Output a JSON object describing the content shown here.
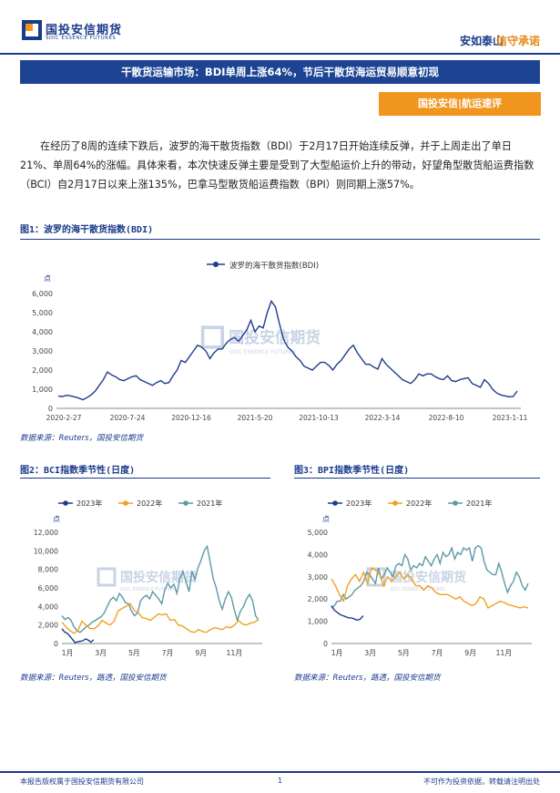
{
  "header": {
    "logo_cn": "国投安信期货",
    "logo_en": "SDIC ESSENCE FUTURES",
    "slogan_a": "安如泰山",
    "slogan_b": "信守承诺"
  },
  "title_bar": "干散货运输市场：BDI单周上涨64%，节后干散货海运贸易顺意初现",
  "section_tag": "国投安信|航运速评",
  "paragraph": "在经历了8周的连续下跌后，波罗的海干散货指数（BDI）于2月17日开始连续反弹，并于上周走出了单日21%、单周64%的涨幅。具体来看，本次快速反弹主要是受到了大型船运价上升的带动，好望角型散货船运费指数（BCI）自2月17日以来上涨135%，巴拿马型散货船运费指数（BPI）则同期上涨57%。",
  "watermark": {
    "cn": "国投安信期货",
    "en": "SDIC ESSENCE FUTURES"
  },
  "colors": {
    "navy": "#1a3a8a",
    "orange": "#f0961e",
    "bdi": "#1d3c8c",
    "s2023": "#1d3c8c",
    "s2022": "#f0a020",
    "s2021": "#5a9aa5"
  },
  "chart_data": [
    {
      "type": "line",
      "figure_title": "图1：波罗的海干散货指数(BDI)",
      "series_name": "波罗的海干散货指数(BDI)",
      "ylabel": "点",
      "ylim": [
        0,
        6000
      ],
      "yticks": [
        "0",
        "1,000",
        "2,000",
        "3,000",
        "4,000",
        "5,000",
        "6,000"
      ],
      "xticks": [
        "2020-2-27",
        "2020-7-24",
        "2020-12-16",
        "2021-5-20",
        "2021-10-13",
        "2022-3-14",
        "2022-8-10",
        "2023-1-11"
      ],
      "values": [
        640,
        620,
        680,
        650,
        600,
        540,
        450,
        560,
        700,
        900,
        1200,
        1500,
        1900,
        1750,
        1650,
        1500,
        1450,
        1550,
        1650,
        1700,
        1500,
        1400,
        1300,
        1200,
        1350,
        1450,
        1300,
        1350,
        1700,
        2000,
        2500,
        2400,
        2700,
        3000,
        3300,
        3200,
        3000,
        2600,
        2900,
        3100,
        3100,
        3400,
        3600,
        3700,
        3500,
        3800,
        4100,
        4600,
        4000,
        4300,
        4200,
        5000,
        5600,
        5300,
        4400,
        3600,
        3200,
        3000,
        2700,
        2500,
        2200,
        2100,
        2000,
        2200,
        2400,
        2400,
        2250,
        2000,
        2300,
        2500,
        2800,
        3100,
        3300,
        2900,
        2600,
        2300,
        2300,
        2150,
        2050,
        2600,
        2300,
        2100,
        1900,
        1700,
        1500,
        1400,
        1300,
        1500,
        1800,
        1700,
        1800,
        1800,
        1650,
        1550,
        1500,
        1700,
        1450,
        1400,
        1500,
        1550,
        1600,
        1300,
        1200,
        1100,
        1500,
        1300,
        1000,
        800,
        700,
        650,
        600,
        620,
        900
      ],
      "source": "数据来源：Reuters，国投安信期货"
    },
    {
      "type": "line",
      "figure_title": "图2：BCI指数季节性(日度)",
      "ylabel": "点",
      "ylim": [
        0,
        12000
      ],
      "yticks": [
        "0",
        "2,000",
        "4,000",
        "6,000",
        "8,000",
        "10,000",
        "12,000"
      ],
      "xticks": [
        "1月",
        "3月",
        "5月",
        "7月",
        "9月",
        "11月"
      ],
      "series": [
        {
          "name": "2023年",
          "values": [
            1600,
            1250,
            1100,
            800,
            450,
            100,
            200,
            250,
            300,
            500,
            350,
            150,
            400
          ]
        },
        {
          "name": "2022年",
          "values": [
            2300,
            1800,
            1400,
            1100,
            1400,
            2400,
            2000,
            1600,
            1600,
            1900,
            2500,
            2200,
            2000,
            2400,
            3500,
            3800,
            4000,
            4300,
            3600,
            3300,
            2800,
            2700,
            2500,
            2800,
            3200,
            3100,
            3200,
            2500,
            2600,
            2000,
            1900,
            1600,
            1300,
            1200,
            1500,
            1300,
            1200,
            1500,
            1700,
            1600,
            1500,
            1800,
            1700,
            2000,
            2500,
            2100,
            2000,
            2200,
            2300,
            2600
          ]
        },
        {
          "name": "2021年",
          "values": [
            3000,
            2600,
            2800,
            2500,
            1800,
            1400,
            1200,
            1500,
            1800,
            2000,
            2300,
            2500,
            2700,
            2900,
            3300,
            4000,
            4700,
            5000,
            4600,
            5400,
            5000,
            4400,
            4300,
            3500,
            3000,
            3300,
            4600,
            5000,
            5200,
            4800,
            5600,
            5200,
            4800,
            4300,
            5800,
            6500,
            6000,
            6400,
            5400,
            7000,
            7800,
            6700,
            5600,
            7800,
            6900,
            8200,
            9000,
            10000,
            10500,
            8800,
            7000,
            6000,
            4600,
            3700,
            4800,
            5600,
            5000,
            3600,
            2500,
            3500,
            4000,
            4800,
            5300,
            4600,
            3000,
            2500
          ]
        }
      ],
      "source": "数据来源：Reuters，路透，国投安信期货"
    },
    {
      "type": "line",
      "figure_title": "图3：BPI指数季节性(日度)",
      "ylabel": "点",
      "ylim": [
        0,
        5000
      ],
      "yticks": [
        "0",
        "1,000",
        "2,000",
        "3,000",
        "4,000",
        "5,000"
      ],
      "xticks": [
        "1月",
        "3月",
        "5月",
        "7月",
        "9月",
        "11月"
      ],
      "series": [
        {
          "name": "2023年",
          "values": [
            1700,
            1500,
            1400,
            1300,
            1250,
            1200,
            1150,
            1150,
            1100,
            1050,
            1100,
            1250
          ]
        },
        {
          "name": "2022年",
          "values": [
            2900,
            2600,
            2200,
            1900,
            2600,
            2900,
            3100,
            2800,
            3200,
            2700,
            3400,
            3300,
            3100,
            2600,
            3000,
            2800,
            3000,
            3200,
            2900,
            3100,
            2900,
            2600,
            2600,
            2400,
            2600,
            2500,
            2300,
            2200,
            2200,
            2200,
            2100,
            2000,
            2100,
            1900,
            1800,
            1700,
            1800,
            2100,
            2000,
            1600,
            1700,
            1800,
            1900,
            1850,
            1750,
            1700,
            1650,
            1600,
            1650,
            1600
          ]
        },
        {
          "name": "2021年",
          "values": [
            1600,
            1700,
            1900,
            1900,
            2200,
            2000,
            2100,
            2200,
            2400,
            2500,
            2600,
            2800,
            3200,
            3100,
            2900,
            2700,
            3400,
            2900,
            3100,
            3400,
            3200,
            3000,
            3500,
            3600,
            3500,
            4000,
            3800,
            3300,
            3500,
            3400,
            3600,
            3500,
            3900,
            3700,
            3500,
            3800,
            4000,
            3600,
            4100,
            3900,
            4000,
            4300,
            3800,
            4100,
            4000,
            4300,
            4200,
            4300,
            3700,
            4300,
            4400,
            4300,
            3700,
            3300,
            3200,
            3100,
            3100,
            3600,
            3200,
            2700,
            2300,
            2600,
            2800,
            3200,
            3000,
            2600,
            2400,
            2700
          ]
        }
      ],
      "source": "数据来源：Reuters，路透，国投安信期货"
    }
  ],
  "footer": {
    "left": "本报告版权属于国投安信期货有限公司",
    "center": "1",
    "right": "不可作为投资依据，转载请注明出处"
  }
}
